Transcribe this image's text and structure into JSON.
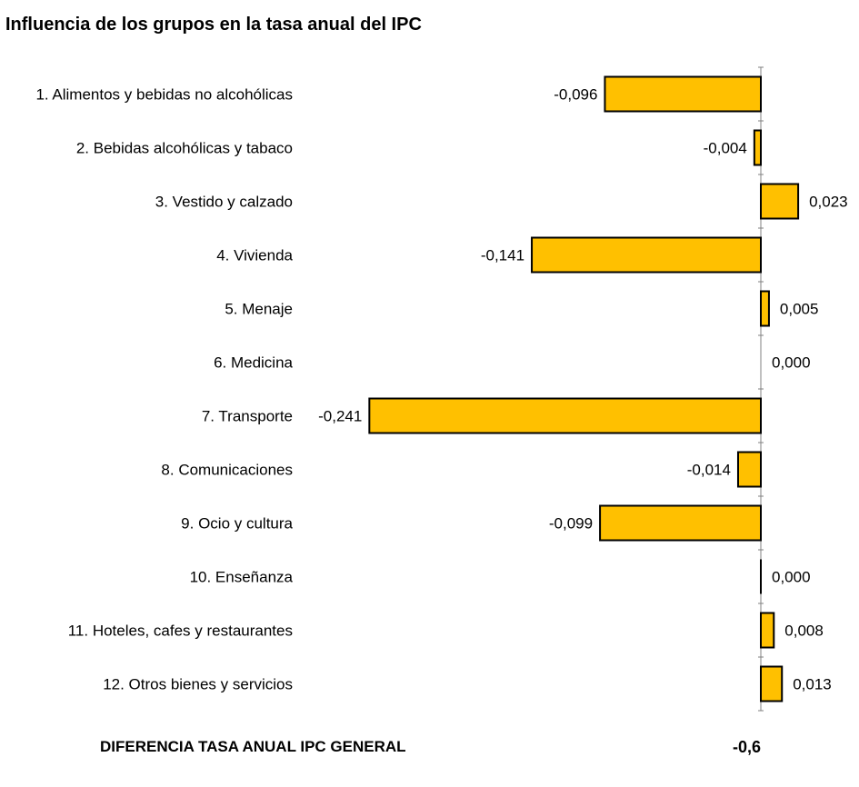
{
  "page": {
    "title": "Influencia de los grupos en la tasa anual del IPC",
    "summary_label": "DIFERENCIA TASA ANUAL IPC GENERAL",
    "summary_value": "-0,6"
  },
  "chart_data": {
    "type": "bar",
    "orientation": "horizontal",
    "title": "Influencia de los grupos en la tasa anual del IPC",
    "categories": [
      "1. Alimentos y bebidas no alcohólicas",
      "2. Bebidas alcohólicas y tabaco",
      "3. Vestido y calzado",
      "4. Vivienda",
      "5. Menaje",
      "6. Medicina",
      "7. Transporte",
      "8. Comunicaciones",
      "9. Ocio y cultura",
      "10. Enseñanza",
      "11. Hoteles, cafes y restaurantes",
      "12. Otros bienes y servicios"
    ],
    "values": [
      -0.096,
      -0.004,
      0.023,
      -0.141,
      0.005,
      0.0,
      -0.241,
      -0.014,
      -0.099,
      0.0,
      0.008,
      0.013
    ],
    "value_labels": [
      "-0,096",
      "-0,004",
      "0,023",
      "-0,141",
      "0,005",
      "0,000",
      "-0,241",
      "-0,014",
      "-0,099",
      "0,000",
      "0,008",
      "0,013"
    ],
    "bar_color": "#FFC000",
    "bar_border": "#000000",
    "axis_color": "#808080",
    "grid": false,
    "legend": "none"
  }
}
